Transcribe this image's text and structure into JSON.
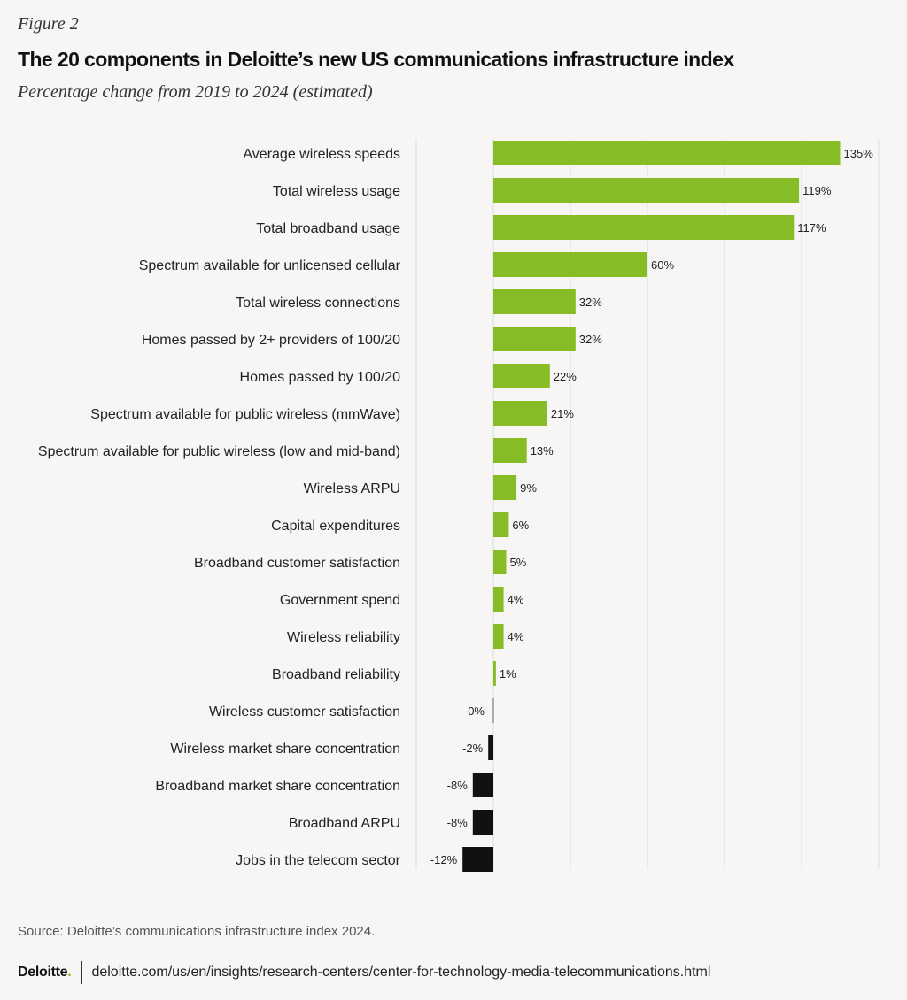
{
  "header": {
    "figure_label": "Figure 2",
    "title": "The 20 components in Deloitte’s new US communications infrastructure index",
    "subtitle": "Percentage change from 2019 to 2024 (estimated)"
  },
  "colors": {
    "positive": "#86bc25",
    "negative": "#111111",
    "zero": "#aaaaaa",
    "grid": "#dddddd"
  },
  "chart_data": {
    "type": "bar",
    "orientation": "horizontal",
    "title": "The 20 components in Deloitte’s new US communications infrastructure index",
    "subtitle": "Percentage change from 2019 to 2024 (estimated)",
    "xlabel": "",
    "ylabel": "",
    "xlim": [
      -15,
      150
    ],
    "grid": true,
    "categories": [
      "Average wireless speeds",
      "Total wireless usage",
      "Total broadband usage",
      "Spectrum available for unlicensed cellular",
      "Total wireless connections",
      "Homes passed by 2+ providers of 100/20",
      "Homes passed by 100/20",
      "Spectrum available for public wireless (mmWave)",
      "Spectrum available for public wireless (low and mid-band)",
      "Wireless ARPU",
      "Capital expenditures",
      "Broadband customer satisfaction",
      "Government spend",
      "Wireless reliability",
      "Broadband reliability",
      "Wireless customer satisfaction",
      "Wireless market share concentration",
      "Broadband market share concentration",
      "Broadband ARPU",
      "Jobs in the telecom sector"
    ],
    "values": [
      135,
      119,
      117,
      60,
      32,
      32,
      22,
      21,
      13,
      9,
      6,
      5,
      4,
      4,
      1,
      0,
      -2,
      -8,
      -8,
      -12
    ],
    "labels": [
      "135%",
      "119%",
      "117%",
      "60%",
      "32%",
      "32%",
      "22%",
      "21%",
      "13%",
      "9%",
      "6%",
      "5%",
      "4%",
      "4%",
      "1%",
      "0%",
      "-2%",
      "-8%",
      "-8%",
      "-12%"
    ]
  },
  "footer": {
    "source": "Source: Deloitte’s communications infrastructure index 2024.",
    "logo_text": "Deloitte",
    "logo_dot": ".",
    "url": "deloitte.com/us/en/insights/research-centers/center-for-technology-media-telecommunications.html"
  }
}
